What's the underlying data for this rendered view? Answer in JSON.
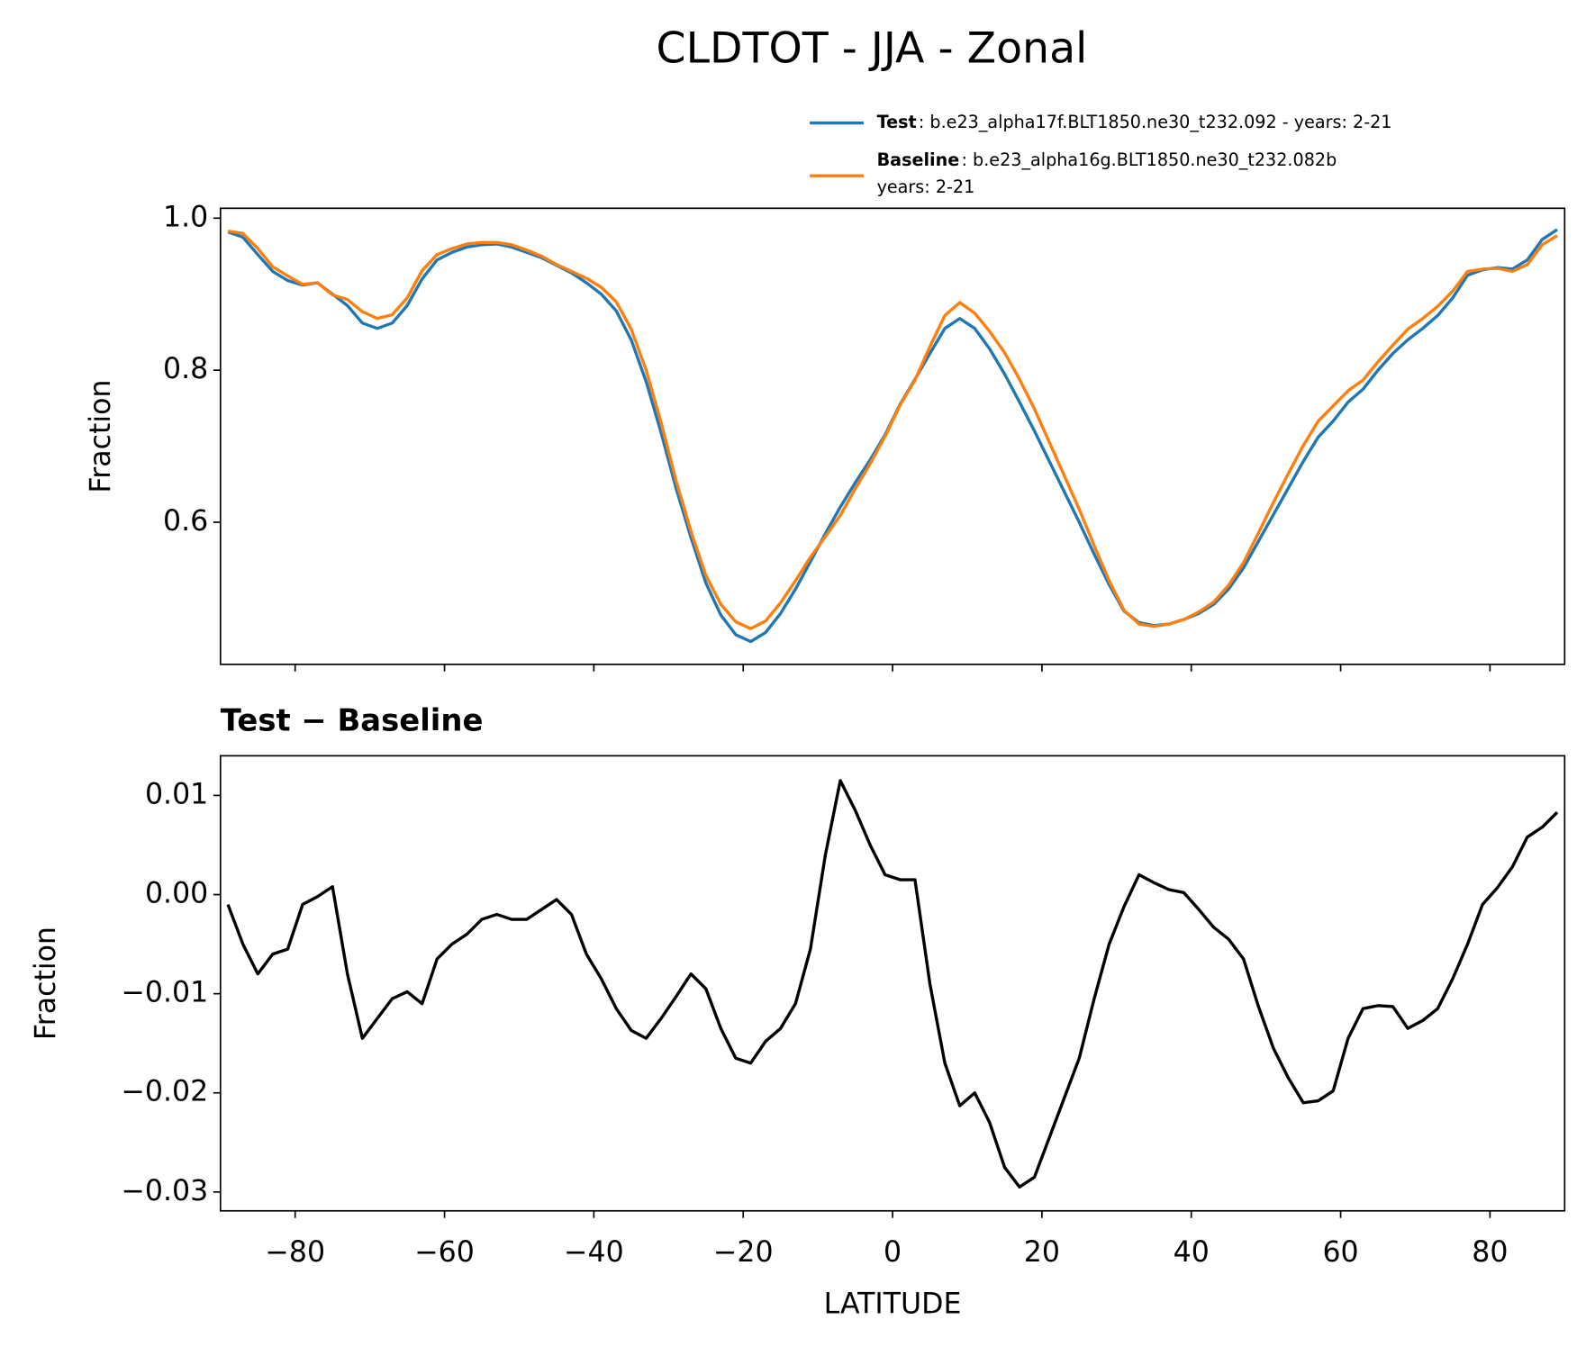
{
  "chart_data": [
    {
      "type": "line",
      "title": "CLDTOT - JJA - Zonal",
      "ylabel": "Fraction",
      "x": [
        -89,
        -87,
        -85,
        -83,
        -81,
        -79,
        -77,
        -75,
        -73,
        -71,
        -69,
        -67,
        -65,
        -63,
        -61,
        -59,
        -57,
        -55,
        -53,
        -51,
        -49,
        -47,
        -45,
        -43,
        -41,
        -39,
        -37,
        -35,
        -33,
        -31,
        -29,
        -27,
        -25,
        -23,
        -21,
        -19,
        -17,
        -15,
        -13,
        -11,
        -9,
        -7,
        -5,
        -3,
        -1,
        1,
        3,
        5,
        7,
        9,
        11,
        13,
        15,
        17,
        19,
        21,
        23,
        25,
        27,
        29,
        31,
        33,
        35,
        37,
        39,
        41,
        43,
        45,
        47,
        49,
        51,
        53,
        55,
        57,
        59,
        61,
        63,
        65,
        67,
        69,
        71,
        73,
        75,
        77,
        79,
        81,
        83,
        85,
        87,
        89
      ],
      "series": [
        {
          "name": "Test",
          "description": [
            ": b.e23_alpha17f.BLT1850.ne30_t232.092 - years: 2-21"
          ],
          "color": "#1f77b4",
          "values": [
            0.982,
            0.975,
            0.952,
            0.93,
            0.918,
            0.912,
            0.915,
            0.9,
            0.885,
            0.862,
            0.855,
            0.862,
            0.885,
            0.92,
            0.945,
            0.955,
            0.962,
            0.965,
            0.966,
            0.962,
            0.955,
            0.948,
            0.938,
            0.928,
            0.915,
            0.9,
            0.878,
            0.84,
            0.785,
            0.718,
            0.645,
            0.58,
            0.52,
            0.478,
            0.452,
            0.443,
            0.455,
            0.48,
            0.512,
            0.548,
            0.585,
            0.62,
            0.652,
            0.682,
            0.715,
            0.755,
            0.788,
            0.822,
            0.855,
            0.868,
            0.855,
            0.828,
            0.795,
            0.758,
            0.72,
            0.68,
            0.64,
            0.6,
            0.558,
            0.518,
            0.483,
            0.468,
            0.464,
            0.466,
            0.472,
            0.48,
            0.492,
            0.512,
            0.54,
            0.575,
            0.61,
            0.645,
            0.68,
            0.712,
            0.733,
            0.758,
            0.775,
            0.8,
            0.822,
            0.84,
            0.855,
            0.872,
            0.895,
            0.925,
            0.932,
            0.935,
            0.933,
            0.945,
            0.972,
            0.985
          ]
        },
        {
          "name": "Baseline",
          "description": [
            ": b.e23_alpha16g.BLT1850.ne30_t232.082b",
            "years: 2-21"
          ],
          "color": "#ff7f0e",
          "values": [
            0.983,
            0.98,
            0.96,
            0.936,
            0.924,
            0.913,
            0.915,
            0.899,
            0.893,
            0.877,
            0.868,
            0.873,
            0.895,
            0.931,
            0.952,
            0.96,
            0.966,
            0.968,
            0.968,
            0.965,
            0.958,
            0.95,
            0.939,
            0.93,
            0.921,
            0.909,
            0.89,
            0.854,
            0.8,
            0.731,
            0.655,
            0.588,
            0.53,
            0.492,
            0.469,
            0.46,
            0.47,
            0.494,
            0.523,
            0.554,
            0.581,
            0.609,
            0.644,
            0.677,
            0.713,
            0.754,
            0.787,
            0.831,
            0.872,
            0.889,
            0.875,
            0.851,
            0.823,
            0.788,
            0.749,
            0.705,
            0.661,
            0.617,
            0.569,
            0.523,
            0.484,
            0.466,
            0.463,
            0.466,
            0.472,
            0.482,
            0.495,
            0.517,
            0.547,
            0.586,
            0.626,
            0.664,
            0.701,
            0.733,
            0.753,
            0.773,
            0.787,
            0.811,
            0.833,
            0.854,
            0.868,
            0.884,
            0.904,
            0.93,
            0.933,
            0.934,
            0.93,
            0.939,
            0.965,
            0.977
          ]
        }
      ],
      "xlim": [
        -90,
        90
      ],
      "xticks": [
        -80,
        -60,
        -40,
        -20,
        0,
        20,
        40,
        60,
        80
      ],
      "ylim": [
        0.413,
        1.013
      ],
      "yticks": [
        {
          "value": 1,
          "label": "1.0"
        },
        0.8,
        0.6
      ]
    },
    {
      "type": "line",
      "title": "Test − Baseline",
      "xlabel": "LATITUDE",
      "ylabel": "Fraction",
      "x": [
        -89,
        -87,
        -85,
        -83,
        -81,
        -79,
        -77,
        -75,
        -73,
        -71,
        -69,
        -67,
        -65,
        -63,
        -61,
        -59,
        -57,
        -55,
        -53,
        -51,
        -49,
        -47,
        -45,
        -43,
        -41,
        -39,
        -37,
        -35,
        -33,
        -31,
        -29,
        -27,
        -25,
        -23,
        -21,
        -19,
        -17,
        -15,
        -13,
        -11,
        -9,
        -7,
        -5,
        -3,
        -1,
        1,
        3,
        5,
        7,
        9,
        11,
        13,
        15,
        17,
        19,
        21,
        23,
        25,
        27,
        29,
        31,
        33,
        35,
        37,
        39,
        41,
        43,
        45,
        47,
        49,
        51,
        53,
        55,
        57,
        59,
        61,
        63,
        65,
        67,
        69,
        71,
        73,
        75,
        77,
        79,
        81,
        83,
        85,
        87,
        89
      ],
      "series": [
        {
          "color": "#000000",
          "values": [
            -0.001,
            -0.005,
            -0.008,
            -0.006,
            -0.0055,
            -0.001,
            -0.0002,
            0.0008,
            -0.008,
            -0.0145,
            -0.0125,
            -0.0105,
            -0.0098,
            -0.011,
            -0.0065,
            -0.005,
            -0.004,
            -0.0025,
            -0.002,
            -0.0025,
            -0.0025,
            -0.0015,
            -0.0005,
            -0.002,
            -0.006,
            -0.0085,
            -0.0115,
            -0.0137,
            -0.0145,
            -0.0125,
            -0.0103,
            -0.008,
            -0.0095,
            -0.0135,
            -0.0165,
            -0.017,
            -0.0148,
            -0.0135,
            -0.011,
            -0.0055,
            0.004,
            0.0115,
            0.0085,
            0.005,
            0.002,
            0.0015,
            0.0015,
            -0.009,
            -0.017,
            -0.0213,
            -0.02,
            -0.023,
            -0.0275,
            -0.0295,
            -0.0285,
            -0.0245,
            -0.0205,
            -0.0165,
            -0.0105,
            -0.005,
            -0.0012,
            0.002,
            0.0012,
            0.0005,
            0.0002,
            -0.0015,
            -0.0033,
            -0.0045,
            -0.0065,
            -0.0113,
            -0.0155,
            -0.0185,
            -0.021,
            -0.0208,
            -0.0198,
            -0.0145,
            -0.0115,
            -0.0112,
            -0.0113,
            -0.0135,
            -0.0127,
            -0.0115,
            -0.0085,
            -0.005,
            -0.001,
            0.0007,
            0.0028,
            0.0058,
            0.0068,
            0.0083
          ]
        }
      ],
      "xlim": [
        -90,
        90
      ],
      "xticks": [
        {
          "value": -80,
          "label": "−80"
        },
        {
          "value": -60,
          "label": "−60"
        },
        {
          "value": -40,
          "label": "−40"
        },
        {
          "value": -20,
          "label": "−20"
        },
        0,
        20,
        40,
        60,
        80
      ],
      "ylim": [
        -0.0319,
        0.014
      ],
      "yticks": [
        0.01,
        {
          "value": 0,
          "label": "0.00"
        },
        {
          "value": -0.01,
          "label": "−0.01"
        },
        {
          "value": -0.02,
          "label": "−0.02"
        },
        {
          "value": -0.03,
          "label": "−0.03"
        }
      ]
    }
  ]
}
